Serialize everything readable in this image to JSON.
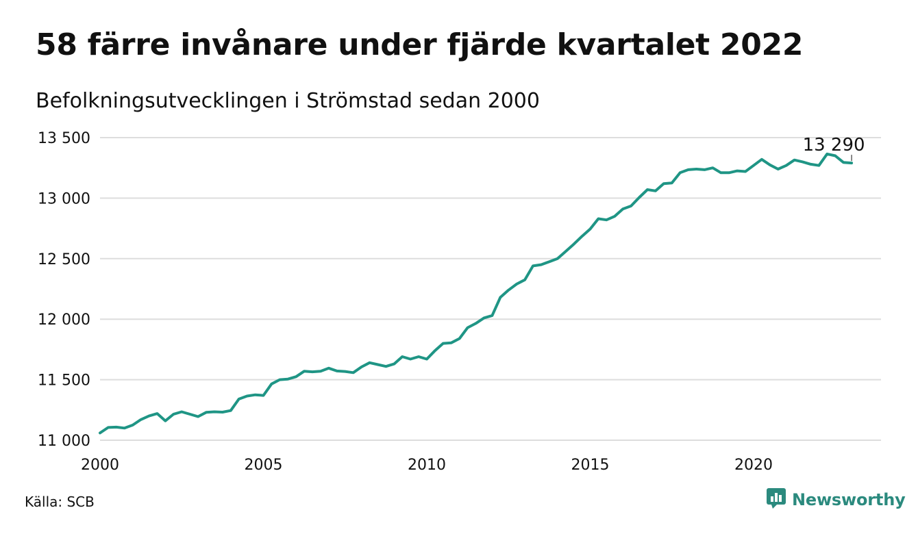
{
  "title": "58 färre invånare under fjärde kvartalet 2022",
  "subtitle": "Befolkningsutvecklingen i Strömstad sedan 2000",
  "source": "Källa: SCB",
  "brand": {
    "name": "Newsworthy",
    "icon": "newsworthy-logo-icon",
    "color": "#2b8a7e"
  },
  "colors": {
    "line": "#1f9585",
    "grid": "#dddddd",
    "text": "#111111"
  },
  "chart_data": {
    "type": "line",
    "title": "58 färre invånare under fjärde kvartalet 2022",
    "subtitle": "Befolkningsutvecklingen i Strömstad sedan 2000",
    "xlim": [
      2000,
      2023.9
    ],
    "ylim": [
      11000,
      13500
    ],
    "yticks": [
      11000,
      11500,
      12000,
      12500,
      13000,
      13500
    ],
    "ytick_labels": [
      "11 000",
      "11 500",
      "12 000",
      "12 500",
      "13 000",
      "13 500"
    ],
    "xticks": [
      2000,
      2005,
      2010,
      2015,
      2020
    ],
    "xtick_labels": [
      "2000",
      "2005",
      "2010",
      "2015",
      "2020"
    ],
    "grid": true,
    "annotation": {
      "text": "13 290",
      "x": 2023.0,
      "y": 13290
    },
    "series": [
      {
        "x": [
          2000.0,
          2000.25,
          2000.5,
          2000.75,
          2001.0,
          2001.25,
          2001.5,
          2001.75,
          2002.0,
          2002.25,
          2002.5,
          2002.75,
          2003.0,
          2003.25,
          2003.5,
          2003.75,
          2004.0,
          2004.25,
          2004.5,
          2004.75,
          2005.0,
          2005.25,
          2005.5,
          2005.75,
          2006.0,
          2006.25,
          2006.5,
          2006.75,
          2007.0,
          2007.25,
          2007.5,
          2007.75,
          2008.0,
          2008.25,
          2008.5,
          2008.75,
          2009.0,
          2009.25,
          2009.5,
          2009.75,
          2010.0,
          2010.25,
          2010.5,
          2010.75,
          2011.0,
          2011.25,
          2011.5,
          2011.75,
          2012.0,
          2012.25,
          2012.5,
          2012.75,
          2013.0,
          2013.25,
          2013.5,
          2013.75,
          2014.0,
          2014.25,
          2014.5,
          2014.75,
          2015.0,
          2015.25,
          2015.5,
          2015.75,
          2016.0,
          2016.25,
          2016.5,
          2016.75,
          2017.0,
          2017.25,
          2017.5,
          2017.75,
          2018.0,
          2018.25,
          2018.5,
          2018.75,
          2019.0,
          2019.25,
          2019.5,
          2019.75,
          2020.0,
          2020.25,
          2020.5,
          2020.75,
          2021.0,
          2021.25,
          2021.5,
          2021.75,
          2022.0,
          2022.25,
          2022.5,
          2022.75,
          2023.0
        ],
        "values": [
          11060,
          11105,
          11108,
          11100,
          11125,
          11170,
          11200,
          11220,
          11160,
          11215,
          11235,
          11215,
          11195,
          11230,
          11235,
          11232,
          11245,
          11340,
          11365,
          11375,
          11370,
          11465,
          11500,
          11505,
          11525,
          11570,
          11565,
          11570,
          11595,
          11572,
          11568,
          11558,
          11605,
          11640,
          11625,
          11610,
          11630,
          11690,
          11670,
          11690,
          11670,
          11740,
          11800,
          11805,
          11840,
          11930,
          11965,
          12010,
          12030,
          12180,
          12240,
          12290,
          12325,
          12440,
          12450,
          12475,
          12500,
          12560,
          12620,
          12685,
          12745,
          12830,
          12820,
          12850,
          12910,
          12935,
          13005,
          13070,
          13060,
          13120,
          13125,
          13210,
          13235,
          13240,
          13235,
          13250,
          13210,
          13210,
          13225,
          13220,
          13270,
          13320,
          13275,
          13240,
          13270,
          13315,
          13300,
          13280,
          13270,
          13365,
          13350,
          13295,
          13290
        ]
      }
    ]
  }
}
